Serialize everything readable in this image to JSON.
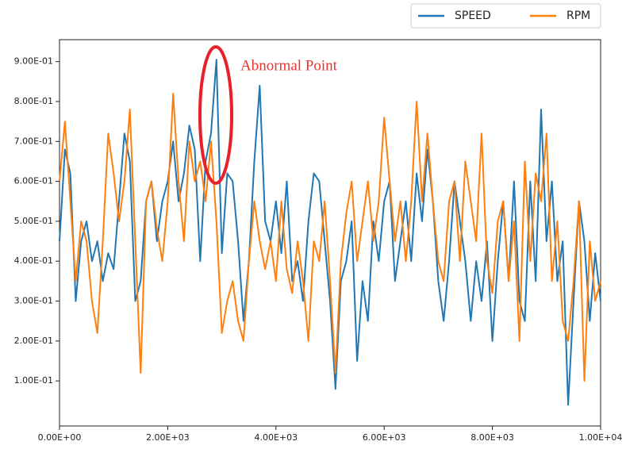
{
  "chart_data": {
    "type": "line",
    "annotation": "Abnormal Point",
    "x": [
      0,
      100,
      200,
      300,
      400,
      500,
      600,
      700,
      800,
      900,
      1000,
      1100,
      1200,
      1300,
      1400,
      1500,
      1600,
      1700,
      1800,
      1900,
      2000,
      2100,
      2200,
      2300,
      2400,
      2500,
      2600,
      2700,
      2800,
      2900,
      3000,
      3100,
      3200,
      3300,
      3400,
      3500,
      3600,
      3700,
      3800,
      3900,
      4000,
      4100,
      4200,
      4300,
      4400,
      4500,
      4600,
      4700,
      4800,
      4900,
      5000,
      5100,
      5200,
      5300,
      5400,
      5500,
      5600,
      5700,
      5800,
      5900,
      6000,
      6100,
      6200,
      6300,
      6400,
      6500,
      6600,
      6700,
      6800,
      6900,
      7000,
      7100,
      7200,
      7300,
      7400,
      7500,
      7600,
      7700,
      7800,
      7900,
      8000,
      8100,
      8200,
      8300,
      8400,
      8500,
      8600,
      8700,
      8800,
      8900,
      9000,
      9100,
      9200,
      9300,
      9400,
      9500,
      9600,
      9700,
      9800,
      9900,
      10000
    ],
    "series": [
      {
        "name": "SPEED",
        "color": "#1f77b4",
        "values": [
          0.45,
          0.68,
          0.62,
          0.3,
          0.45,
          0.5,
          0.4,
          0.45,
          0.35,
          0.42,
          0.38,
          0.55,
          0.72,
          0.65,
          0.3,
          0.35,
          0.55,
          0.6,
          0.45,
          0.55,
          0.6,
          0.7,
          0.55,
          0.62,
          0.74,
          0.68,
          0.4,
          0.65,
          0.72,
          0.905,
          0.42,
          0.62,
          0.6,
          0.45,
          0.25,
          0.4,
          0.65,
          0.84,
          0.5,
          0.45,
          0.55,
          0.42,
          0.6,
          0.35,
          0.4,
          0.3,
          0.5,
          0.62,
          0.6,
          0.45,
          0.3,
          0.08,
          0.35,
          0.4,
          0.5,
          0.15,
          0.35,
          0.25,
          0.5,
          0.4,
          0.55,
          0.6,
          0.35,
          0.45,
          0.55,
          0.4,
          0.62,
          0.5,
          0.68,
          0.55,
          0.35,
          0.25,
          0.4,
          0.6,
          0.5,
          0.4,
          0.25,
          0.4,
          0.3,
          0.45,
          0.2,
          0.4,
          0.55,
          0.35,
          0.6,
          0.3,
          0.25,
          0.6,
          0.35,
          0.78,
          0.45,
          0.6,
          0.35,
          0.45,
          0.04,
          0.3,
          0.55,
          0.45,
          0.25,
          0.42,
          0.3
        ]
      },
      {
        "name": "RPM",
        "color": "#ff7f0e",
        "values": [
          0.6,
          0.75,
          0.55,
          0.35,
          0.5,
          0.45,
          0.3,
          0.22,
          0.45,
          0.72,
          0.62,
          0.5,
          0.6,
          0.78,
          0.45,
          0.12,
          0.55,
          0.6,
          0.48,
          0.4,
          0.55,
          0.82,
          0.6,
          0.45,
          0.7,
          0.6,
          0.65,
          0.55,
          0.7,
          0.5,
          0.22,
          0.3,
          0.35,
          0.25,
          0.2,
          0.4,
          0.55,
          0.45,
          0.38,
          0.45,
          0.35,
          0.55,
          0.38,
          0.32,
          0.45,
          0.35,
          0.2,
          0.45,
          0.4,
          0.55,
          0.35,
          0.12,
          0.4,
          0.52,
          0.6,
          0.4,
          0.5,
          0.6,
          0.45,
          0.55,
          0.76,
          0.6,
          0.45,
          0.55,
          0.4,
          0.55,
          0.8,
          0.55,
          0.72,
          0.55,
          0.4,
          0.35,
          0.55,
          0.6,
          0.4,
          0.65,
          0.55,
          0.45,
          0.72,
          0.4,
          0.32,
          0.5,
          0.55,
          0.35,
          0.5,
          0.2,
          0.65,
          0.4,
          0.62,
          0.55,
          0.72,
          0.35,
          0.5,
          0.25,
          0.2,
          0.35,
          0.55,
          0.1,
          0.45,
          0.3,
          0.35
        ]
      }
    ],
    "xlim": [
      0,
      10000
    ],
    "xticks": [
      {
        "value": 0,
        "label": "0.00E+00"
      },
      {
        "value": 2000,
        "label": "2.00E+03"
      },
      {
        "value": 4000,
        "label": "4.00E+03"
      },
      {
        "value": 6000,
        "label": "6.00E+03"
      },
      {
        "value": 8000,
        "label": "8.00E+03"
      },
      {
        "value": 10000,
        "label": "1.00E+04"
      }
    ],
    "ylim": [
      -0.013,
      0.955
    ],
    "yticks": [
      {
        "value": 0.1,
        "label": "1.00E-01"
      },
      {
        "value": 0.2,
        "label": "2.00E-01"
      },
      {
        "value": 0.3,
        "label": "3.00E-01"
      },
      {
        "value": 0.4,
        "label": "4.00E-01"
      },
      {
        "value": 0.5,
        "label": "5.00E-01"
      },
      {
        "value": 0.6,
        "label": "6.00E-01"
      },
      {
        "value": 0.7,
        "label": "7.00E-01"
      },
      {
        "value": 0.8,
        "label": "8.00E-01"
      },
      {
        "value": 0.9,
        "label": "9.00E-01"
      }
    ],
    "grid": false,
    "legend": "upper right"
  }
}
